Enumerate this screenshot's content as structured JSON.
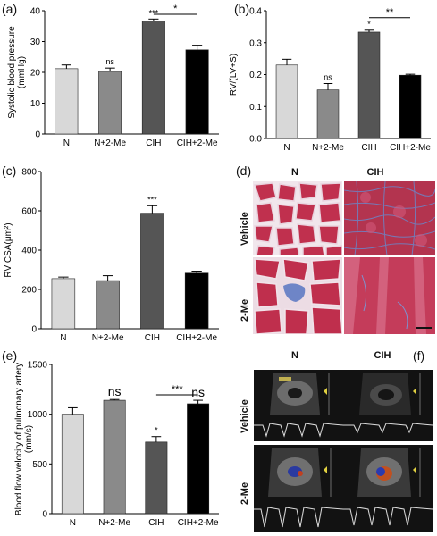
{
  "panels": {
    "a": "(a)",
    "b": "(b)",
    "c": "(c)",
    "d": "(d)",
    "e": "(e)",
    "f": "(f)"
  },
  "chart_data": [
    {
      "id": "a",
      "type": "bar",
      "categories": [
        "N",
        "N+2-Me",
        "CIH",
        "CIH+2-Me"
      ],
      "values": [
        21.2,
        20.3,
        36.7,
        27.3
      ],
      "errors": [
        1.2,
        1.1,
        0.6,
        1.5
      ],
      "colors": [
        "#d8d8d8",
        "#8a8a8a",
        "#555555",
        "#000000"
      ],
      "ylabel_lines": [
        "Systolic blood pressure",
        "(mmHg)"
      ],
      "ylim": [
        0,
        40
      ],
      "yticks": [
        0,
        10,
        20,
        30,
        40
      ],
      "bar_labels": [
        "",
        "ns",
        "***",
        ""
      ],
      "bracket": {
        "from": 2,
        "to": 3,
        "label": "*"
      }
    },
    {
      "id": "b",
      "type": "bar",
      "categories": [
        "N",
        "N+2-Me",
        "CIH",
        "CIH+2-Me"
      ],
      "values": [
        0.23,
        0.152,
        0.333,
        0.198
      ],
      "errors": [
        0.018,
        0.02,
        0.006,
        0.003
      ],
      "colors": [
        "#d8d8d8",
        "#8a8a8a",
        "#555555",
        "#000000"
      ],
      "ylabel_lines": [
        "RV/(LV+S)"
      ],
      "ylim": [
        0,
        0.4
      ],
      "yticks": [
        0.0,
        0.1,
        0.2,
        0.3,
        0.4
      ],
      "ytick_labels": [
        "0.0",
        "0.1",
        "0.2",
        "0.3",
        "0.4"
      ],
      "bar_labels": [
        "",
        "ns",
        "*",
        ""
      ],
      "bracket": {
        "from": 2,
        "to": 3,
        "label": "**"
      }
    },
    {
      "id": "c",
      "type": "bar",
      "categories": [
        "N",
        "N+2-Me",
        "CIH",
        "CIH+2-Me"
      ],
      "values": [
        255,
        245,
        588,
        283
      ],
      "errors": [
        8,
        25,
        38,
        10
      ],
      "colors": [
        "#d8d8d8",
        "#8a8a8a",
        "#555555",
        "#000000"
      ],
      "ylabel_lines": [
        "RV CSA(μm²)"
      ],
      "ylim": [
        0,
        800
      ],
      "yticks": [
        0,
        200,
        400,
        600,
        800
      ],
      "bar_labels": [
        "",
        "",
        "***",
        ""
      ],
      "bracket": null
    },
    {
      "id": "e",
      "type": "bar",
      "categories": [
        "N",
        "N+2-Me",
        "CIH",
        "CIH+2-Me"
      ],
      "values": [
        1000,
        1140,
        720,
        1105
      ],
      "errors": [
        65,
        8,
        55,
        35
      ],
      "colors": [
        "#d8d8d8",
        "#8a8a8a",
        "#555555",
        "#000000"
      ],
      "ylabel_lines": [
        "Blood flow velocity of pulmonary artery",
        "(mm/s)"
      ],
      "ylim": [
        0,
        1500
      ],
      "yticks": [
        0,
        500,
        1000,
        1500
      ],
      "bar_labels": [
        "",
        "ns",
        "*",
        "ns"
      ],
      "bracket": {
        "from": 2,
        "to": 3,
        "label": "***"
      }
    }
  ],
  "histology": {
    "col_labels": [
      "N",
      "CIH"
    ],
    "row_labels": [
      "Vehicle",
      "2-Me"
    ]
  },
  "echo": {
    "col_labels": [
      "N",
      "CIH"
    ],
    "row_labels": [
      "Vehicle",
      "2-Me"
    ]
  }
}
